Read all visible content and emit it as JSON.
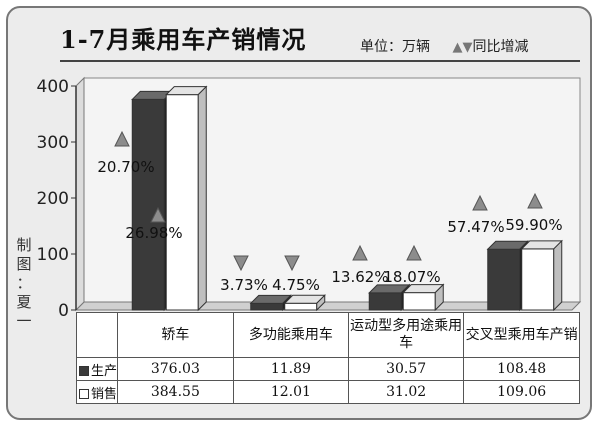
{
  "title": "1-7月乘用车产销情况",
  "unit_label": "单位：万辆",
  "change_label": "同比增减",
  "credit": [
    "制",
    "图",
    "：",
    "夏",
    "一"
  ],
  "colors": {
    "production": "#3a3a3a",
    "sales": "#ffffff",
    "up": "#8c8c8c",
    "down": "#8c8c8c",
    "frame_bg": "#ececec"
  },
  "chart_data": {
    "type": "bar",
    "title": "1-7月乘用车产销情况",
    "ylim": [
      0,
      400
    ],
    "yticks": [
      "0",
      "100",
      "200",
      "300",
      "400"
    ],
    "categories": [
      "轿车",
      "多功能乘用车",
      "运动型多用途乘用车",
      "交叉型乘用车产销"
    ],
    "series": [
      {
        "name": "生产",
        "values": [
          376.03,
          11.89,
          30.57,
          108.48
        ],
        "values_text": [
          "376.03",
          "11.89",
          "30.57",
          "108.48"
        ],
        "change": [
          "20.70%",
          "3.73%",
          "13.62%",
          "57.47%"
        ],
        "direction": [
          "up",
          "down",
          "up",
          "up"
        ]
      },
      {
        "name": "销售",
        "values": [
          384.55,
          12.01,
          31.02,
          109.06
        ],
        "values_text": [
          "384.55",
          "12.01",
          "31.02",
          "109.06"
        ],
        "change": [
          "26.98%",
          "4.75%",
          "18.07%",
          "59.90%"
        ],
        "direction": [
          "up",
          "down",
          "up",
          "up"
        ]
      }
    ],
    "grid": false,
    "legend": "table-left"
  }
}
